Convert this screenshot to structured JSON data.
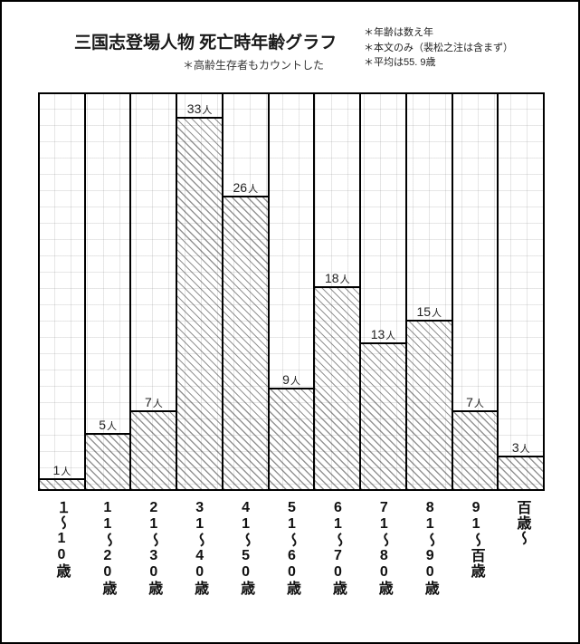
{
  "header": {
    "title": "三国志登場人物 死亡時年齢グラフ",
    "title_fontsize": 19,
    "subtitle": "＊高齢生存者もカウントした",
    "notes": [
      "＊年齢は数え年",
      "＊本文のみ（裴松之注は含まず）",
      "＊平均は55. 9歳"
    ]
  },
  "chart": {
    "type": "bar",
    "y_max": 35,
    "unit_suffix": "人",
    "background_color": "#ffffff",
    "grid_color": "#c8c8c8",
    "bar_hatch_color": "#4a4a4a",
    "border_color": "#000000",
    "x_label_fontsize": 16,
    "bars": [
      {
        "category": "１～10歳",
        "value": 1
      },
      {
        "category": "11～20歳",
        "value": 5
      },
      {
        "category": "21～30歳",
        "value": 7
      },
      {
        "category": "31～40歳",
        "value": 33
      },
      {
        "category": "41～50歳",
        "value": 26
      },
      {
        "category": "51～60歳",
        "value": 9
      },
      {
        "category": "61～70歳",
        "value": 18
      },
      {
        "category": "71～80歳",
        "value": 13
      },
      {
        "category": "81～90歳",
        "value": 15
      },
      {
        "category": "91～百歳",
        "value": 7
      },
      {
        "category": "百歳～",
        "value": 3
      }
    ]
  }
}
